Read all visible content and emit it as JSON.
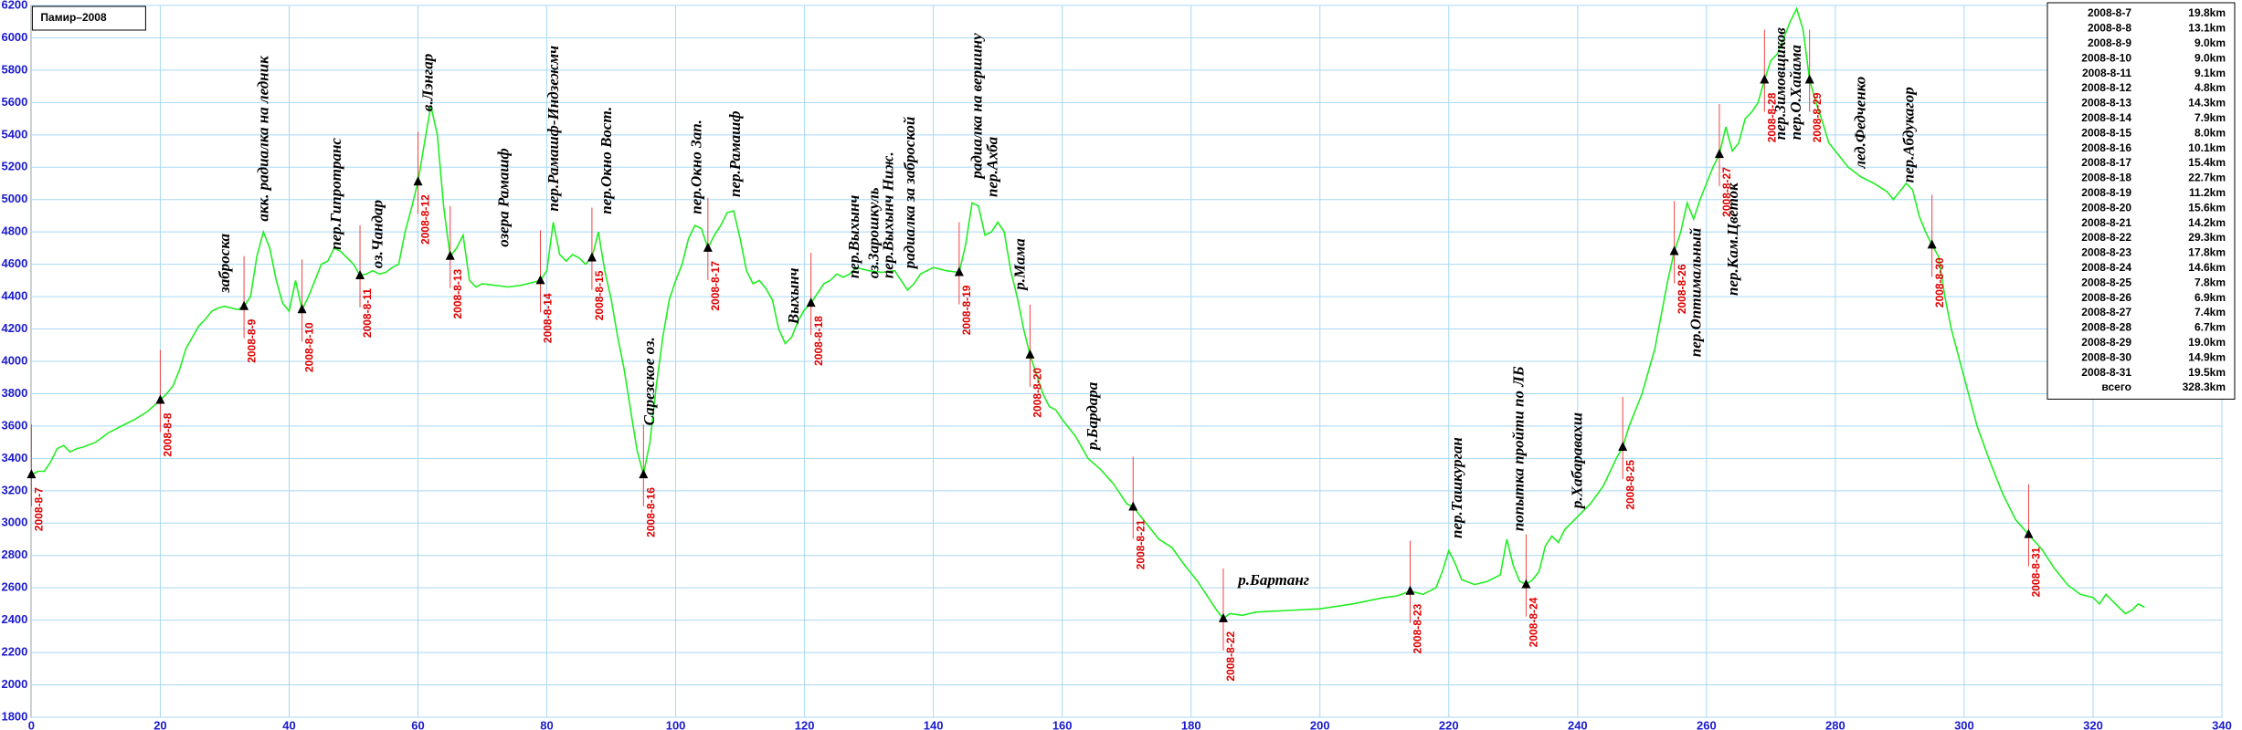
{
  "chart_data": {
    "type": "line",
    "title": "Памир–2008",
    "color": "#22ee22",
    "grid": true,
    "xlim": [
      0,
      340
    ],
    "xticks": [
      0,
      20,
      40,
      60,
      80,
      100,
      120,
      140,
      160,
      180,
      200,
      220,
      240,
      260,
      280,
      300,
      320,
      340
    ],
    "ylim": [
      1800,
      6200
    ],
    "yticks": [
      1800,
      2000,
      2200,
      2400,
      2600,
      2800,
      3000,
      3200,
      3400,
      3600,
      3800,
      4000,
      4200,
      4400,
      4600,
      4800,
      5000,
      5200,
      5400,
      5600,
      5800,
      6000,
      6200
    ],
    "x": [
      0,
      1,
      2,
      3,
      4,
      5,
      6,
      7,
      8,
      10,
      12,
      14,
      16,
      18,
      20,
      21,
      22,
      23,
      24,
      25,
      26,
      27,
      28,
      29,
      30,
      32,
      33,
      34,
      35,
      36,
      37,
      38,
      39,
      40,
      41,
      42,
      43,
      44,
      45,
      46,
      47,
      48,
      49,
      50,
      51,
      52,
      53,
      54,
      55,
      56,
      57,
      58,
      59,
      60,
      61,
      62,
      63,
      64,
      65,
      66,
      67,
      68,
      69,
      70,
      72,
      74,
      76,
      78,
      79,
      80,
      81,
      82,
      83,
      84,
      85,
      86,
      87,
      88,
      89,
      90,
      91,
      92,
      93,
      94,
      95,
      96,
      97,
      98,
      99,
      100,
      101,
      102,
      103,
      104,
      105,
      106,
      107,
      108,
      109,
      110,
      111,
      112,
      113,
      114,
      115,
      116,
      117,
      118,
      119,
      120,
      121,
      122,
      123,
      124,
      125,
      126,
      127,
      128,
      130,
      132,
      134,
      135,
      136,
      137,
      138,
      140,
      142,
      144,
      145,
      146,
      147,
      148,
      149,
      150,
      151,
      152,
      153,
      154,
      155,
      156,
      157,
      158,
      159,
      160,
      162,
      164,
      166,
      168,
      170,
      171,
      173,
      175,
      177,
      179,
      181,
      183,
      184,
      185,
      186,
      188,
      190,
      195,
      200,
      205,
      210,
      212,
      214,
      216,
      218,
      219,
      220,
      221,
      222,
      224,
      226,
      228,
      229,
      230,
      231,
      232,
      233,
      234,
      235,
      236,
      237,
      238,
      240,
      242,
      244,
      246,
      247,
      248,
      250,
      252,
      254,
      255,
      256,
      257,
      258,
      259,
      260,
      261,
      262,
      263,
      264,
      265,
      266,
      267,
      268,
      269,
      270,
      271,
      272,
      273,
      274,
      275,
      276,
      277,
      278,
      279,
      280,
      282,
      284,
      286,
      288,
      289,
      290,
      291,
      292,
      293,
      294,
      295,
      296,
      297,
      298,
      300,
      302,
      304,
      306,
      308,
      310,
      312,
      314,
      316,
      318,
      320,
      321,
      322,
      323,
      324,
      325,
      326,
      327,
      328
    ],
    "values": [
      3300,
      3320,
      3320,
      3380,
      3460,
      3480,
      3440,
      3460,
      3470,
      3500,
      3560,
      3600,
      3640,
      3690,
      3760,
      3800,
      3850,
      3950,
      4080,
      4150,
      4220,
      4260,
      4310,
      4330,
      4340,
      4320,
      4340,
      4400,
      4650,
      4800,
      4700,
      4500,
      4360,
      4310,
      4500,
      4320,
      4400,
      4500,
      4600,
      4620,
      4700,
      4680,
      4640,
      4600,
      4530,
      4540,
      4560,
      4540,
      4550,
      4580,
      4600,
      4800,
      4950,
      5110,
      5350,
      5580,
      5400,
      4950,
      4650,
      4700,
      4780,
      4500,
      4460,
      4480,
      4470,
      4460,
      4470,
      4490,
      4500,
      4560,
      4860,
      4660,
      4620,
      4660,
      4640,
      4600,
      4640,
      4800,
      4560,
      4380,
      4150,
      3950,
      3700,
      3450,
      3300,
      3500,
      3850,
      4150,
      4380,
      4500,
      4600,
      4760,
      4840,
      4820,
      4700,
      4780,
      4840,
      4920,
      4930,
      4760,
      4560,
      4480,
      4500,
      4450,
      4380,
      4200,
      4110,
      4150,
      4250,
      4320,
      4360,
      4420,
      4480,
      4500,
      4540,
      4520,
      4540,
      4580,
      4560,
      4550,
      4560,
      4500,
      4440,
      4480,
      4540,
      4580,
      4560,
      4550,
      4720,
      4980,
      4960,
      4780,
      4800,
      4860,
      4800,
      4560,
      4400,
      4200,
      4040,
      3920,
      3800,
      3720,
      3700,
      3640,
      3540,
      3400,
      3330,
      3240,
      3120,
      3100,
      3000,
      2900,
      2850,
      2740,
      2640,
      2520,
      2460,
      2410,
      2440,
      2430,
      2450,
      2460,
      2470,
      2500,
      2540,
      2550,
      2580,
      2560,
      2600,
      2700,
      2830,
      2750,
      2650,
      2620,
      2640,
      2680,
      2900,
      2740,
      2640,
      2620,
      2650,
      2700,
      2860,
      2920,
      2880,
      2960,
      3040,
      3120,
      3230,
      3400,
      3470,
      3600,
      3800,
      4080,
      4500,
      4680,
      4800,
      4980,
      4880,
      5000,
      5100,
      5200,
      5280,
      5450,
      5300,
      5350,
      5500,
      5540,
      5600,
      5740,
      5860,
      5900,
      6000,
      6100,
      6180,
      6050,
      5740,
      5600,
      5480,
      5350,
      5300,
      5200,
      5140,
      5100,
      5050,
      5000,
      5050,
      5100,
      5060,
      4900,
      4800,
      4720,
      4650,
      4400,
      4200,
      3900,
      3600,
      3380,
      3180,
      3020,
      2930,
      2840,
      2720,
      2620,
      2560,
      2540,
      2500,
      2560,
      2520,
      2480,
      2440,
      2460,
      2500,
      2480
    ],
    "markers": [
      {
        "label": "2008-8-7",
        "x": 0,
        "y": 3300
      },
      {
        "label": "2008-8-8",
        "x": 20,
        "y": 3760
      },
      {
        "label": "2008-8-9",
        "x": 33,
        "y": 4340
      },
      {
        "label": "2008-8-10",
        "x": 42,
        "y": 4320
      },
      {
        "label": "2008-8-11",
        "x": 51,
        "y": 4530
      },
      {
        "label": "2008-8-12",
        "x": 60,
        "y": 5110
      },
      {
        "label": "2008-8-13",
        "x": 65,
        "y": 4650
      },
      {
        "label": "2008-8-14",
        "x": 79,
        "y": 4500
      },
      {
        "label": "2008-8-15",
        "x": 87,
        "y": 4640
      },
      {
        "label": "2008-8-16",
        "x": 95,
        "y": 3300
      },
      {
        "label": "2008-8-17",
        "x": 105,
        "y": 4700
      },
      {
        "label": "2008-8-18",
        "x": 121,
        "y": 4360
      },
      {
        "label": "2008-8-19",
        "x": 144,
        "y": 4550
      },
      {
        "label": "2008-8-20",
        "x": 155,
        "y": 4040
      },
      {
        "label": "2008-8-21",
        "x": 171,
        "y": 3100
      },
      {
        "label": "2008-8-22",
        "x": 185,
        "y": 2410
      },
      {
        "label": "2008-8-23",
        "x": 214,
        "y": 2580
      },
      {
        "label": "2008-8-24",
        "x": 232,
        "y": 2620
      },
      {
        "label": "2008-8-25",
        "x": 247,
        "y": 3470
      },
      {
        "label": "2008-8-26",
        "x": 255,
        "y": 4680
      },
      {
        "label": "2008-8-27",
        "x": 262,
        "y": 5280
      },
      {
        "label": "2008-8-28",
        "x": 269,
        "y": 5740
      },
      {
        "label": "2008-8-29",
        "x": 276,
        "y": 5740
      },
      {
        "label": "2008-8-30",
        "x": 295,
        "y": 4720
      },
      {
        "label": "2008-8-31",
        "x": 310,
        "y": 2930
      }
    ],
    "annotations": [
      "заброска",
      "акк. радиалка на ледник",
      "пер.Гипротранс",
      "оз.Чандар",
      "в.Лэнгар",
      "озера Рамашф",
      "пер.Рамашф-Индзежмч",
      "пер.Окно Вост.",
      "Сарезское оз.",
      "пер.Окно Зап.",
      "пер.Рамашф",
      "Выхынч",
      "пер.Выхынч",
      "оз.Зарошкуль",
      "пер.Выхынч Ниж.",
      "радиалка за заброской",
      "радиалка на вершину",
      "пер.Ахба",
      "р.Мама",
      "р.Бардара",
      "р.Бартанг",
      "пер.Ташкурган",
      "попытка пройти по ЛБ",
      "р.Хабаравахш",
      "пер.Оптимальный",
      "пер.Кам.Цветок",
      "пер.Зимовщиков",
      "пер.О.Хайама",
      "лед.Федченко",
      "пер.Абдукагор"
    ],
    "table": [
      [
        "2008-8-7",
        "19.8km"
      ],
      [
        "2008-8-8",
        "13.1km"
      ],
      [
        "2008-8-9",
        "9.0km"
      ],
      [
        "2008-8-10",
        "9.0km"
      ],
      [
        "2008-8-11",
        "9.1km"
      ],
      [
        "2008-8-12",
        "4.8km"
      ],
      [
        "2008-8-13",
        "14.3km"
      ],
      [
        "2008-8-14",
        "7.9km"
      ],
      [
        "2008-8-15",
        "8.0km"
      ],
      [
        "2008-8-16",
        "10.1km"
      ],
      [
        "2008-8-17",
        "15.4km"
      ],
      [
        "2008-8-18",
        "22.7km"
      ],
      [
        "2008-8-19",
        "11.2km"
      ],
      [
        "2008-8-20",
        "15.6km"
      ],
      [
        "2008-8-21",
        "14.2km"
      ],
      [
        "2008-8-22",
        "29.3km"
      ],
      [
        "2008-8-23",
        "17.8km"
      ],
      [
        "2008-8-24",
        "14.6km"
      ],
      [
        "2008-8-25",
        "7.8km"
      ],
      [
        "2008-8-26",
        "6.9km"
      ],
      [
        "2008-8-27",
        "7.4km"
      ],
      [
        "2008-8-28",
        "6.7km"
      ],
      [
        "2008-8-29",
        "19.0km"
      ],
      [
        "2008-8-30",
        "14.9km"
      ],
      [
        "2008-8-31",
        "19.5km"
      ],
      [
        "всего",
        "328.3km"
      ]
    ]
  }
}
